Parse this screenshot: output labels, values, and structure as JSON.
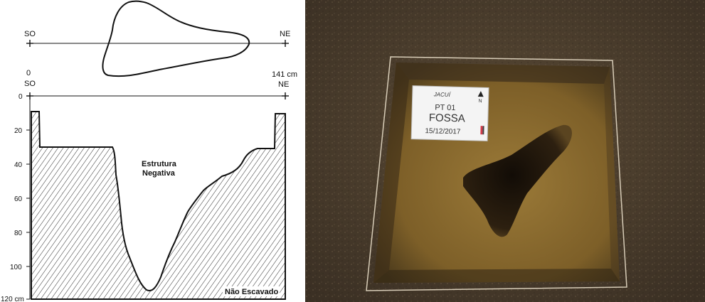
{
  "plan": {
    "left_label": "SO",
    "right_label": "NE"
  },
  "profile": {
    "start_label": "0",
    "end_label": "141 cm",
    "left_dir": "SO",
    "right_dir": "NE",
    "depth_ticks": [
      "0",
      "20",
      "40",
      "60",
      "80",
      "100",
      "120 cm"
    ],
    "feature_label_line1": "Estrutura",
    "feature_label_line2": "Negativa",
    "unexcavated_label": "Não Escavado"
  },
  "photo_card": {
    "site": "JACUÍ",
    "unit": "PT 01",
    "feature": "FOSSA",
    "date": "15/12/2017",
    "north": "N"
  },
  "colors": {
    "soil": "#4a3d2e",
    "pit_fill": "#8b6a2e",
    "pit_shadow": "#2a1e10",
    "card": "#f4f4f4"
  }
}
